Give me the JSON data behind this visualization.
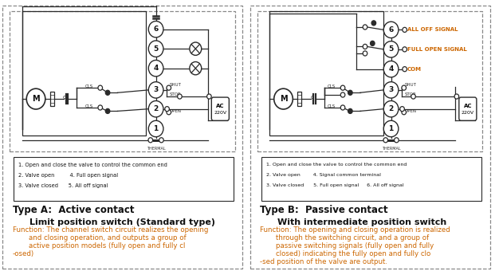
{
  "bg_color": "#ffffff",
  "dash_color": "#888888",
  "circ_color": "#2a2a2a",
  "text_black": "#111111",
  "text_orange": "#cc6600",
  "legend_A": [
    "1. Open and close the valve to control the common end",
    "2. Valve open         4. Full open signal",
    "3. Valve closed      5. All off signal"
  ],
  "legend_B": [
    "1. Open and close the valve to control the common end",
    "2. Valve open        4. Signal common terminal",
    "3. Valve closed      5. Full open signal     6. All off signal"
  ],
  "title_A1": "Type A:  Active contact",
  "title_A2": "Limit position switch (Standard type)",
  "func_A": [
    "Function: The channel switch circuit realizes the opening",
    "and closing operation, and outputs a group of",
    "active position models (fully open and fully cl",
    "-osed)"
  ],
  "title_B1": "Type B:  Passive contact",
  "title_B2": "With intermediate position switch",
  "func_B": [
    "Function: The opening and closing operation is realized",
    "through the switching circuit, and a group of",
    "passive switching signals (fully open and fully",
    "closed) indicating the fully open and fully clo",
    "-sed position of the valve are output."
  ],
  "sig_B": [
    "ALL OFF SIGNAL",
    "FULL OPEN SIGNAL",
    "COM"
  ]
}
